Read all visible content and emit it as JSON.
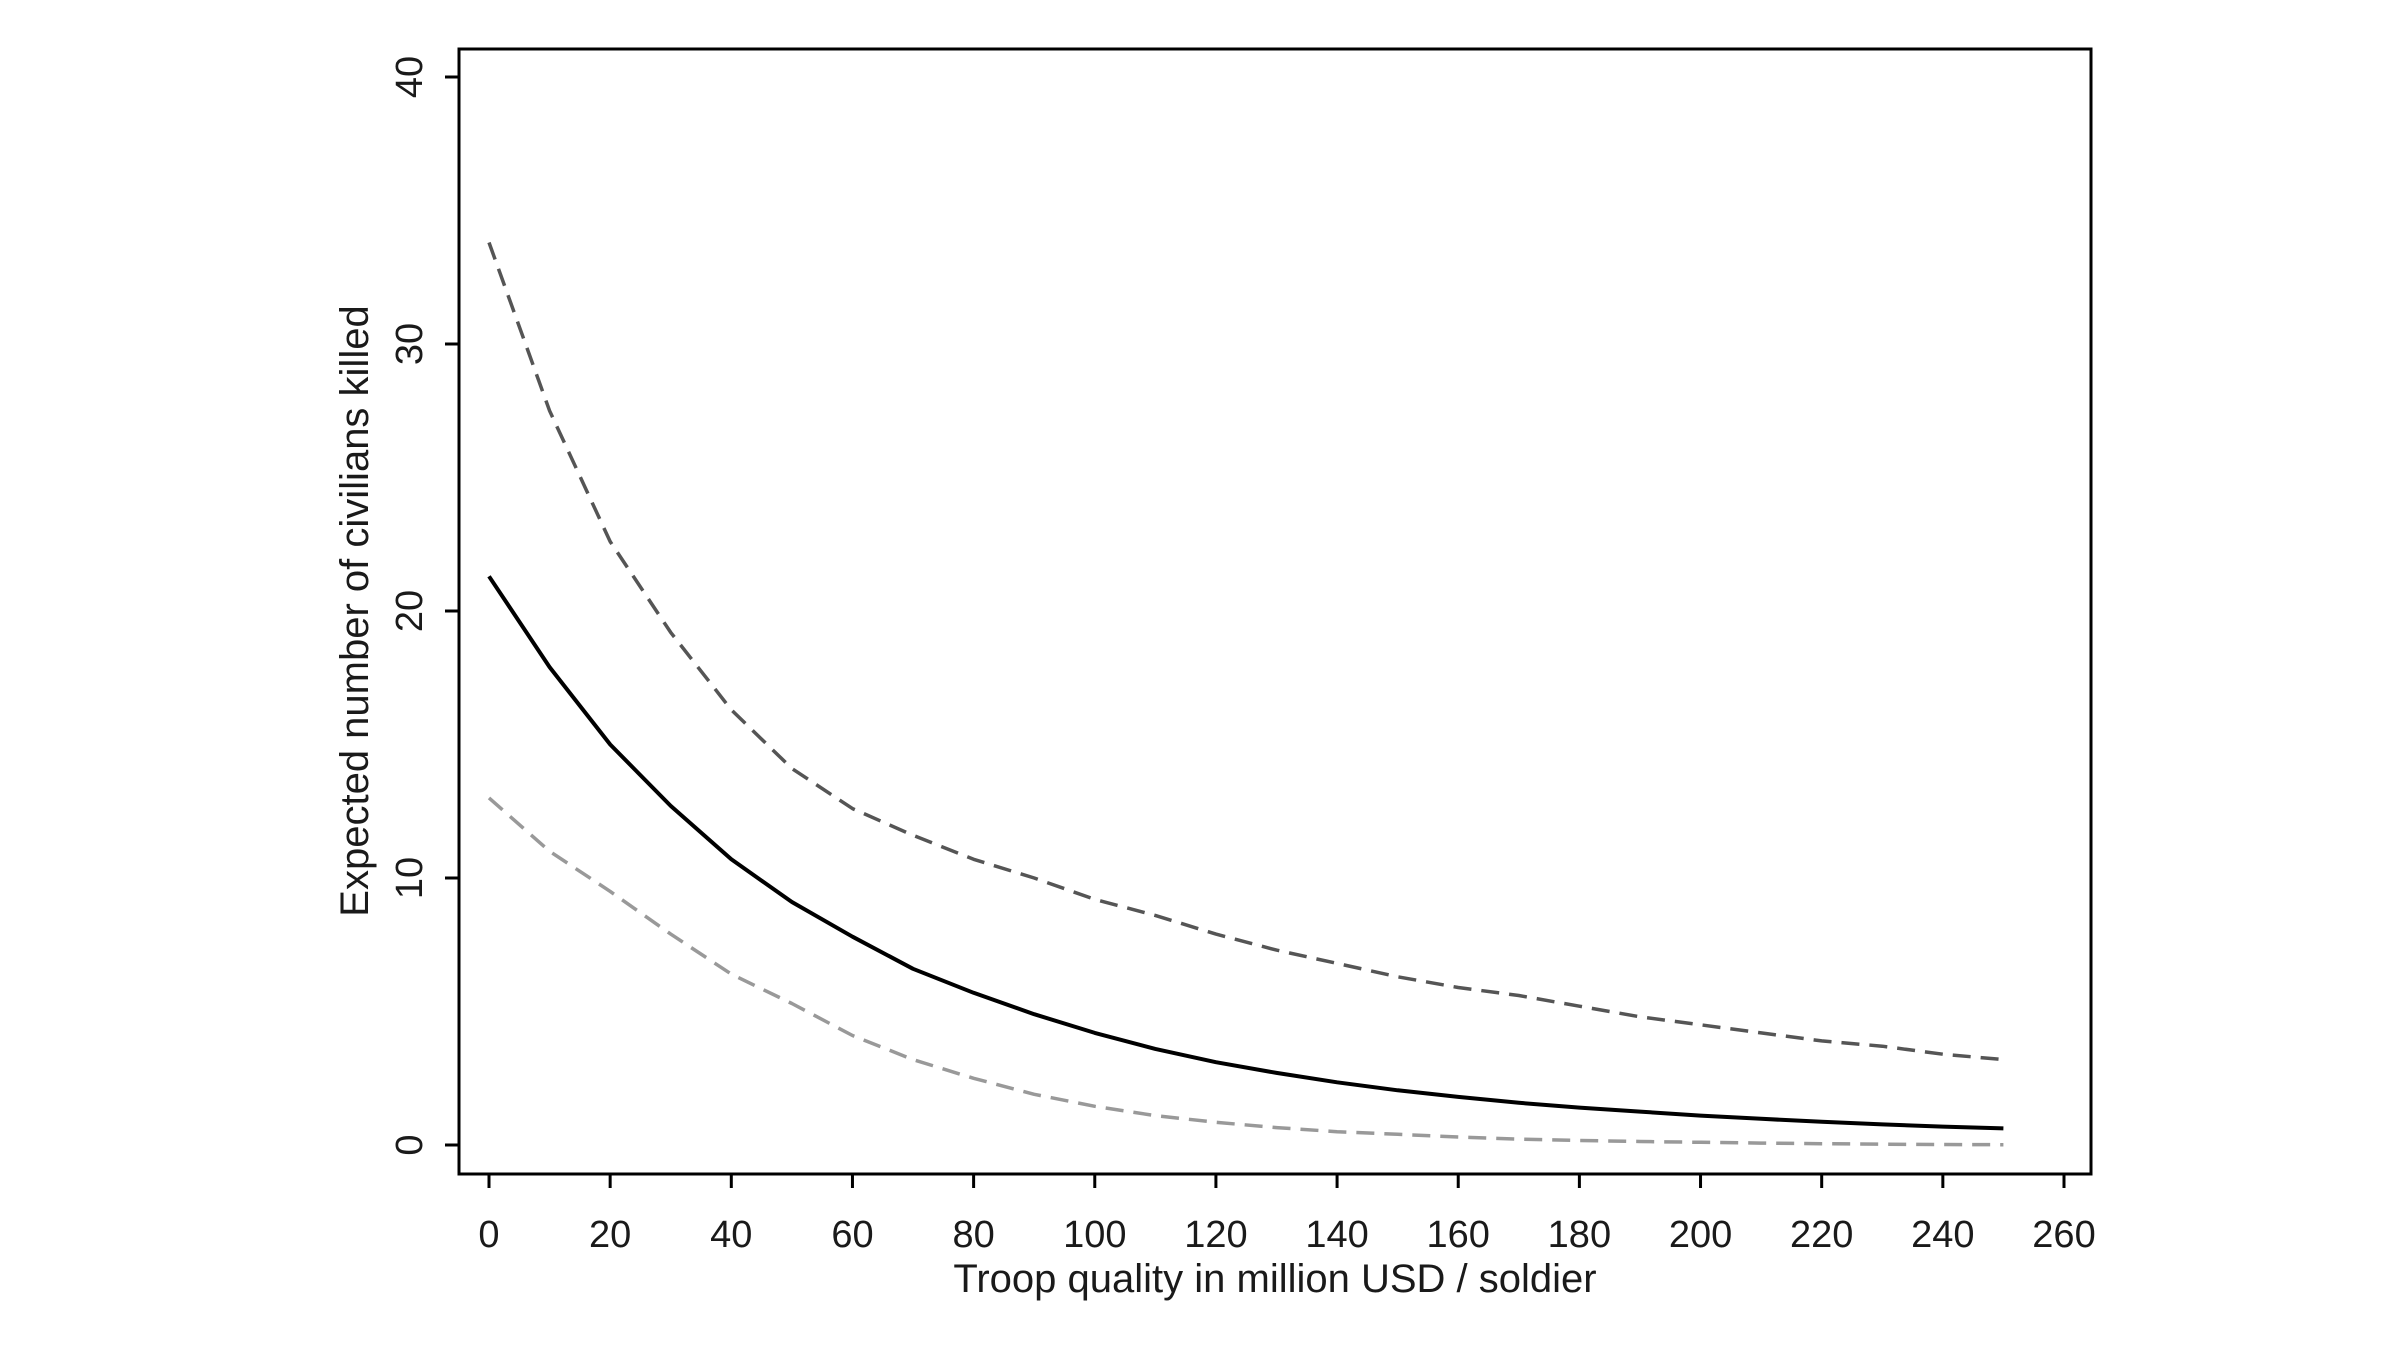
{
  "chart_data": {
    "type": "line",
    "title": "",
    "xlabel": "Troop quality in million USD / soldier",
    "ylabel": "Expected number of civilians killed",
    "xlim": [
      -5,
      265
    ],
    "ylim": [
      -1,
      41
    ],
    "x_ticks": [
      0,
      20,
      40,
      60,
      80,
      100,
      120,
      140,
      160,
      180,
      200,
      220,
      240,
      260
    ],
    "y_ticks": [
      0,
      10,
      20,
      30,
      40
    ],
    "grid": false,
    "legend": "none",
    "series": [
      {
        "style": "solid",
        "color": "#000000",
        "x": [
          0,
          10,
          20,
          30,
          40,
          50,
          60,
          70,
          80,
          90,
          100,
          110,
          120,
          130,
          140,
          150,
          160,
          170,
          180,
          190,
          200,
          210,
          220,
          230,
          240,
          250
        ],
        "y": [
          21.3,
          17.9,
          15.0,
          12.7,
          10.7,
          9.1,
          7.8,
          6.6,
          5.7,
          4.9,
          4.2,
          3.6,
          3.1,
          2.7,
          2.35,
          2.05,
          1.8,
          1.58,
          1.4,
          1.25,
          1.1,
          0.98,
          0.87,
          0.77,
          0.69,
          0.62
        ]
      },
      {
        "style": "dashed",
        "color": "#555555",
        "x": [
          0,
          10,
          20,
          30,
          40,
          50,
          60,
          70,
          80,
          90,
          100,
          110,
          120,
          130,
          140,
          150,
          160,
          170,
          180,
          190,
          200,
          210,
          220,
          230,
          240,
          250
        ],
        "y": [
          33.8,
          27.5,
          22.6,
          19.2,
          16.3,
          14.1,
          12.6,
          11.6,
          10.7,
          10.0,
          9.2,
          8.6,
          7.9,
          7.3,
          6.8,
          6.3,
          5.9,
          5.6,
          5.2,
          4.8,
          4.5,
          4.2,
          3.9,
          3.7,
          3.4,
          3.2
        ]
      },
      {
        "style": "dashed",
        "color": "#999999",
        "x": [
          0,
          10,
          20,
          30,
          40,
          50,
          60,
          70,
          80,
          90,
          100,
          110,
          120,
          130,
          140,
          150,
          160,
          170,
          180,
          190,
          200,
          210,
          220,
          230,
          240,
          250
        ],
        "y": [
          13.0,
          11.0,
          9.5,
          7.9,
          6.4,
          5.3,
          4.1,
          3.2,
          2.5,
          1.9,
          1.45,
          1.1,
          0.85,
          0.65,
          0.5,
          0.4,
          0.3,
          0.22,
          0.17,
          0.13,
          0.1,
          0.07,
          0.05,
          0.03,
          0.02,
          0.01
        ]
      }
    ]
  }
}
